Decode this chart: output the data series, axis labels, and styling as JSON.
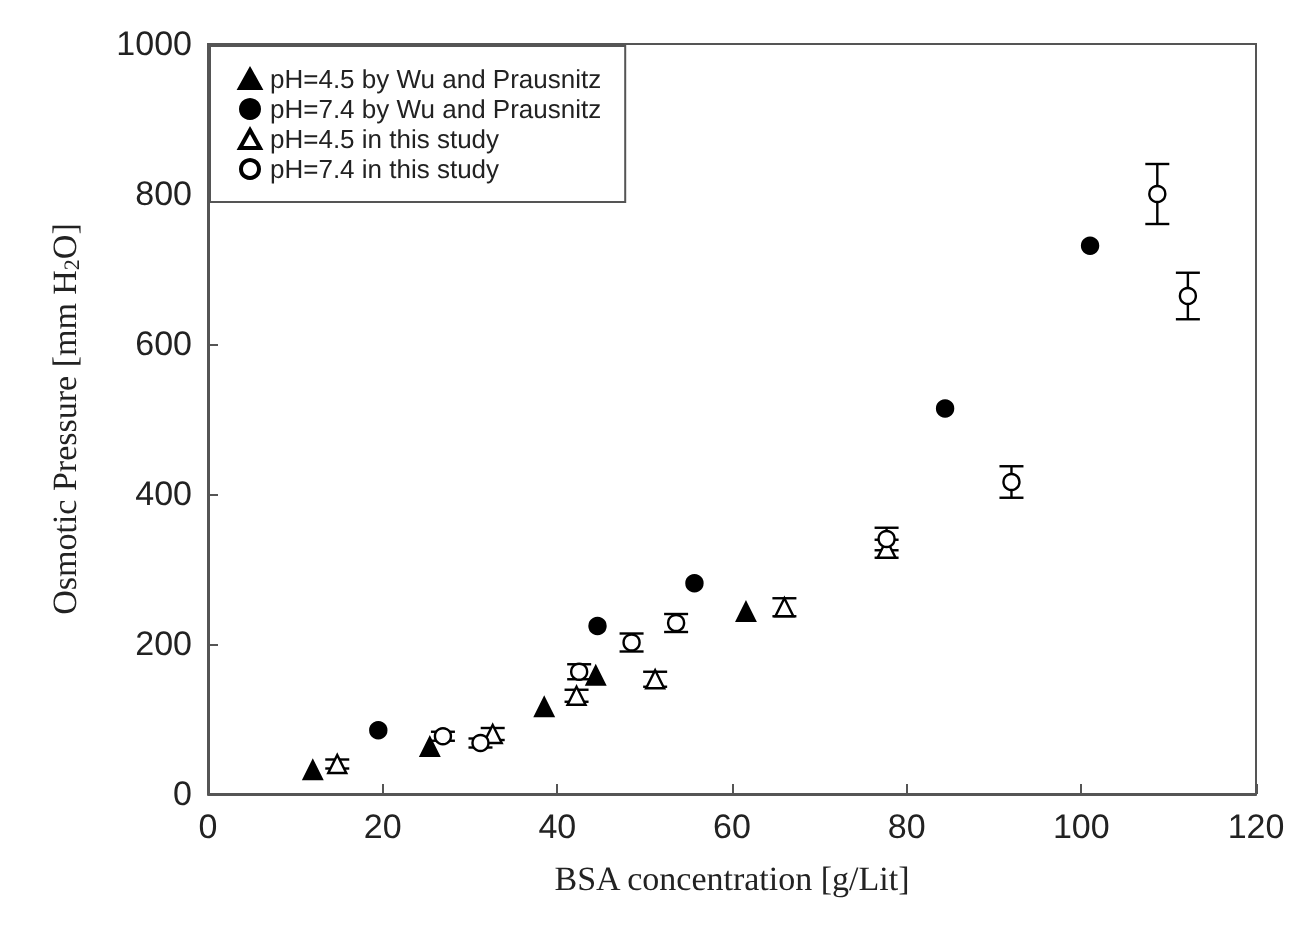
{
  "chart_data": {
    "type": "scatter",
    "xlabel": "BSA concentration [g/Lit]",
    "ylabel": "Osmotic Pressure [mm H$_{2}$O]",
    "xlim": [
      0,
      120
    ],
    "xticks": [
      0,
      20,
      40,
      60,
      80,
      100,
      120
    ],
    "ylim": [
      0,
      1000
    ],
    "yticks": [
      0,
      200,
      400,
      600,
      800,
      1000
    ],
    "grid": false,
    "legend": "top left",
    "series": [
      {
        "name": "pH=4.5 by Wu and Prausnitz",
        "color": "#000000",
        "marker": "triangle",
        "x": [
          12,
          25.4,
          38.5,
          44.4,
          61.6
        ],
        "values": [
          32,
          63,
          116,
          158,
          243
        ]
      },
      {
        "name": "pH=7.4 by Wu and Prausnitz",
        "color": "#000000",
        "marker": "circle",
        "x": [
          19.5,
          44.6,
          55.7,
          84.4,
          101
        ],
        "values": [
          85,
          224,
          281,
          514,
          731
        ]
      },
      {
        "name": "pH=4.5 in this study",
        "color": "#ffffff",
        "marker": "triangle",
        "x": [
          14.8,
          32.6,
          42.2,
          51.2,
          66,
          77.7
        ],
        "values": [
          40,
          80,
          131,
          153,
          249,
          327
        ],
        "errors": [
          6,
          8,
          8,
          10,
          12,
          12
        ]
      },
      {
        "name": "pH=7.4 in this study",
        "color": "#ffffff",
        "marker": "circle",
        "x": [
          26.9,
          31.2,
          42.5,
          48.5,
          53.6,
          77.7,
          92,
          108.7,
          112.2
        ],
        "values": [
          77,
          68,
          163,
          202,
          228,
          340,
          416,
          800,
          664
        ],
        "errors": [
          6,
          6,
          10,
          12,
          12,
          15,
          21,
          40,
          31
        ]
      }
    ]
  }
}
